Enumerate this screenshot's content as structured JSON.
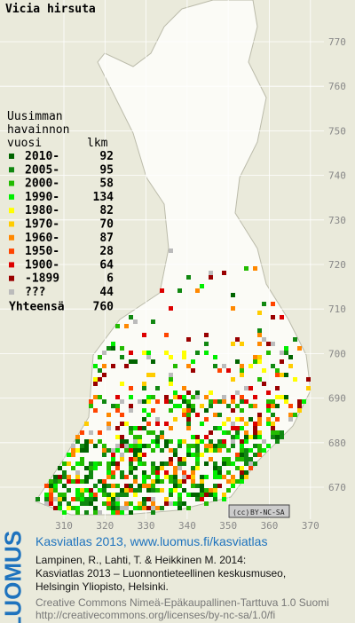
{
  "title": "Vicia hirsuta",
  "legend": {
    "header": [
      "Uusimman",
      "havainnon",
      "vuosi"
    ],
    "count_header": "lkm",
    "items": [
      {
        "label": "2010-",
        "count": 92,
        "color": "#006400"
      },
      {
        "label": "2005-",
        "count": 95,
        "color": "#118811"
      },
      {
        "label": "2000-",
        "count": 58,
        "color": "#22bb00"
      },
      {
        "label": "1990-",
        "count": 134,
        "color": "#00ee00"
      },
      {
        "label": "1980-",
        "count": 82,
        "color": "#ffff00"
      },
      {
        "label": "1970-",
        "count": 70,
        "color": "#ffcc00"
      },
      {
        "label": "1960-",
        "count": 87,
        "color": "#ff8800"
      },
      {
        "label": "1950-",
        "count": 28,
        "color": "#ff4400"
      },
      {
        "label": "1900-",
        "count": 64,
        "color": "#dd0000"
      },
      {
        "label": "-1899",
        "count": 6,
        "color": "#990000"
      },
      {
        "label": "???",
        "count": 44,
        "color": "#bbbbbb"
      }
    ],
    "total_label": "Yhteensä",
    "total": 760
  },
  "x_ticks": [
    310,
    320,
    330,
    340,
    350,
    360,
    370
  ],
  "y_ticks": [
    670,
    680,
    690,
    700,
    710,
    720,
    730,
    740,
    750,
    760,
    770
  ],
  "license_badge": "BY-NC-SA",
  "logo": "LUOMUS",
  "footer": {
    "heading": "Kasviatlas 2013, www.luomus.fi/kasviatlas",
    "citation": [
      "Lampinen, R., Lahti, T. & Heikkinen M. 2014:",
      "Kasviatlas 2013 – Luonnontieteellinen keskusmuseo,",
      "Helsingin Yliopisto, Helsinki."
    ],
    "license": [
      "Creative Commons Nimeä-Epäkaupallinen-Tarttuva 1.0 Suomi",
      "http://creativecommons.org/licenses/by-nc-sa/1.0/fi"
    ]
  }
}
